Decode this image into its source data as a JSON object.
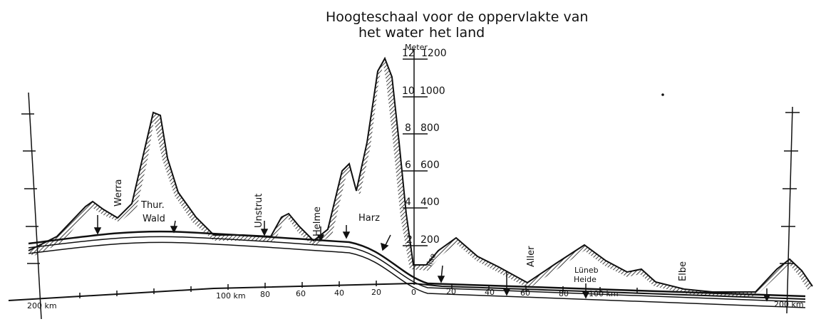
{
  "title": {
    "line1": "Hoogteschaal voor de oppervlakte van",
    "water": "het water",
    "land": "het land"
  },
  "scale": {
    "unit": "Meter",
    "water": [
      "12",
      "10",
      "8",
      "6",
      "4",
      "2"
    ],
    "land": [
      "1200",
      "1000",
      "800",
      "600",
      "400",
      "200"
    ]
  },
  "places": {
    "werra": "Werra",
    "thur": "Thur.",
    "wald": "Wald",
    "unstrut": "Unstrut",
    "helme": "Helme",
    "harz": "Harz",
    "ilse": "Ilse",
    "aller": "Aller",
    "luneb": "Lüneb",
    "heide": "Heide",
    "elbe": "Elbe"
  },
  "km_left": [
    "200 km",
    "100 km",
    "80",
    "60",
    "40",
    "20",
    "0"
  ],
  "km_right": [
    "20",
    "40",
    "60",
    "80",
    "100 km",
    "200 km"
  ],
  "colors": {
    "ink": "#111111",
    "paper": "#ffffff"
  }
}
